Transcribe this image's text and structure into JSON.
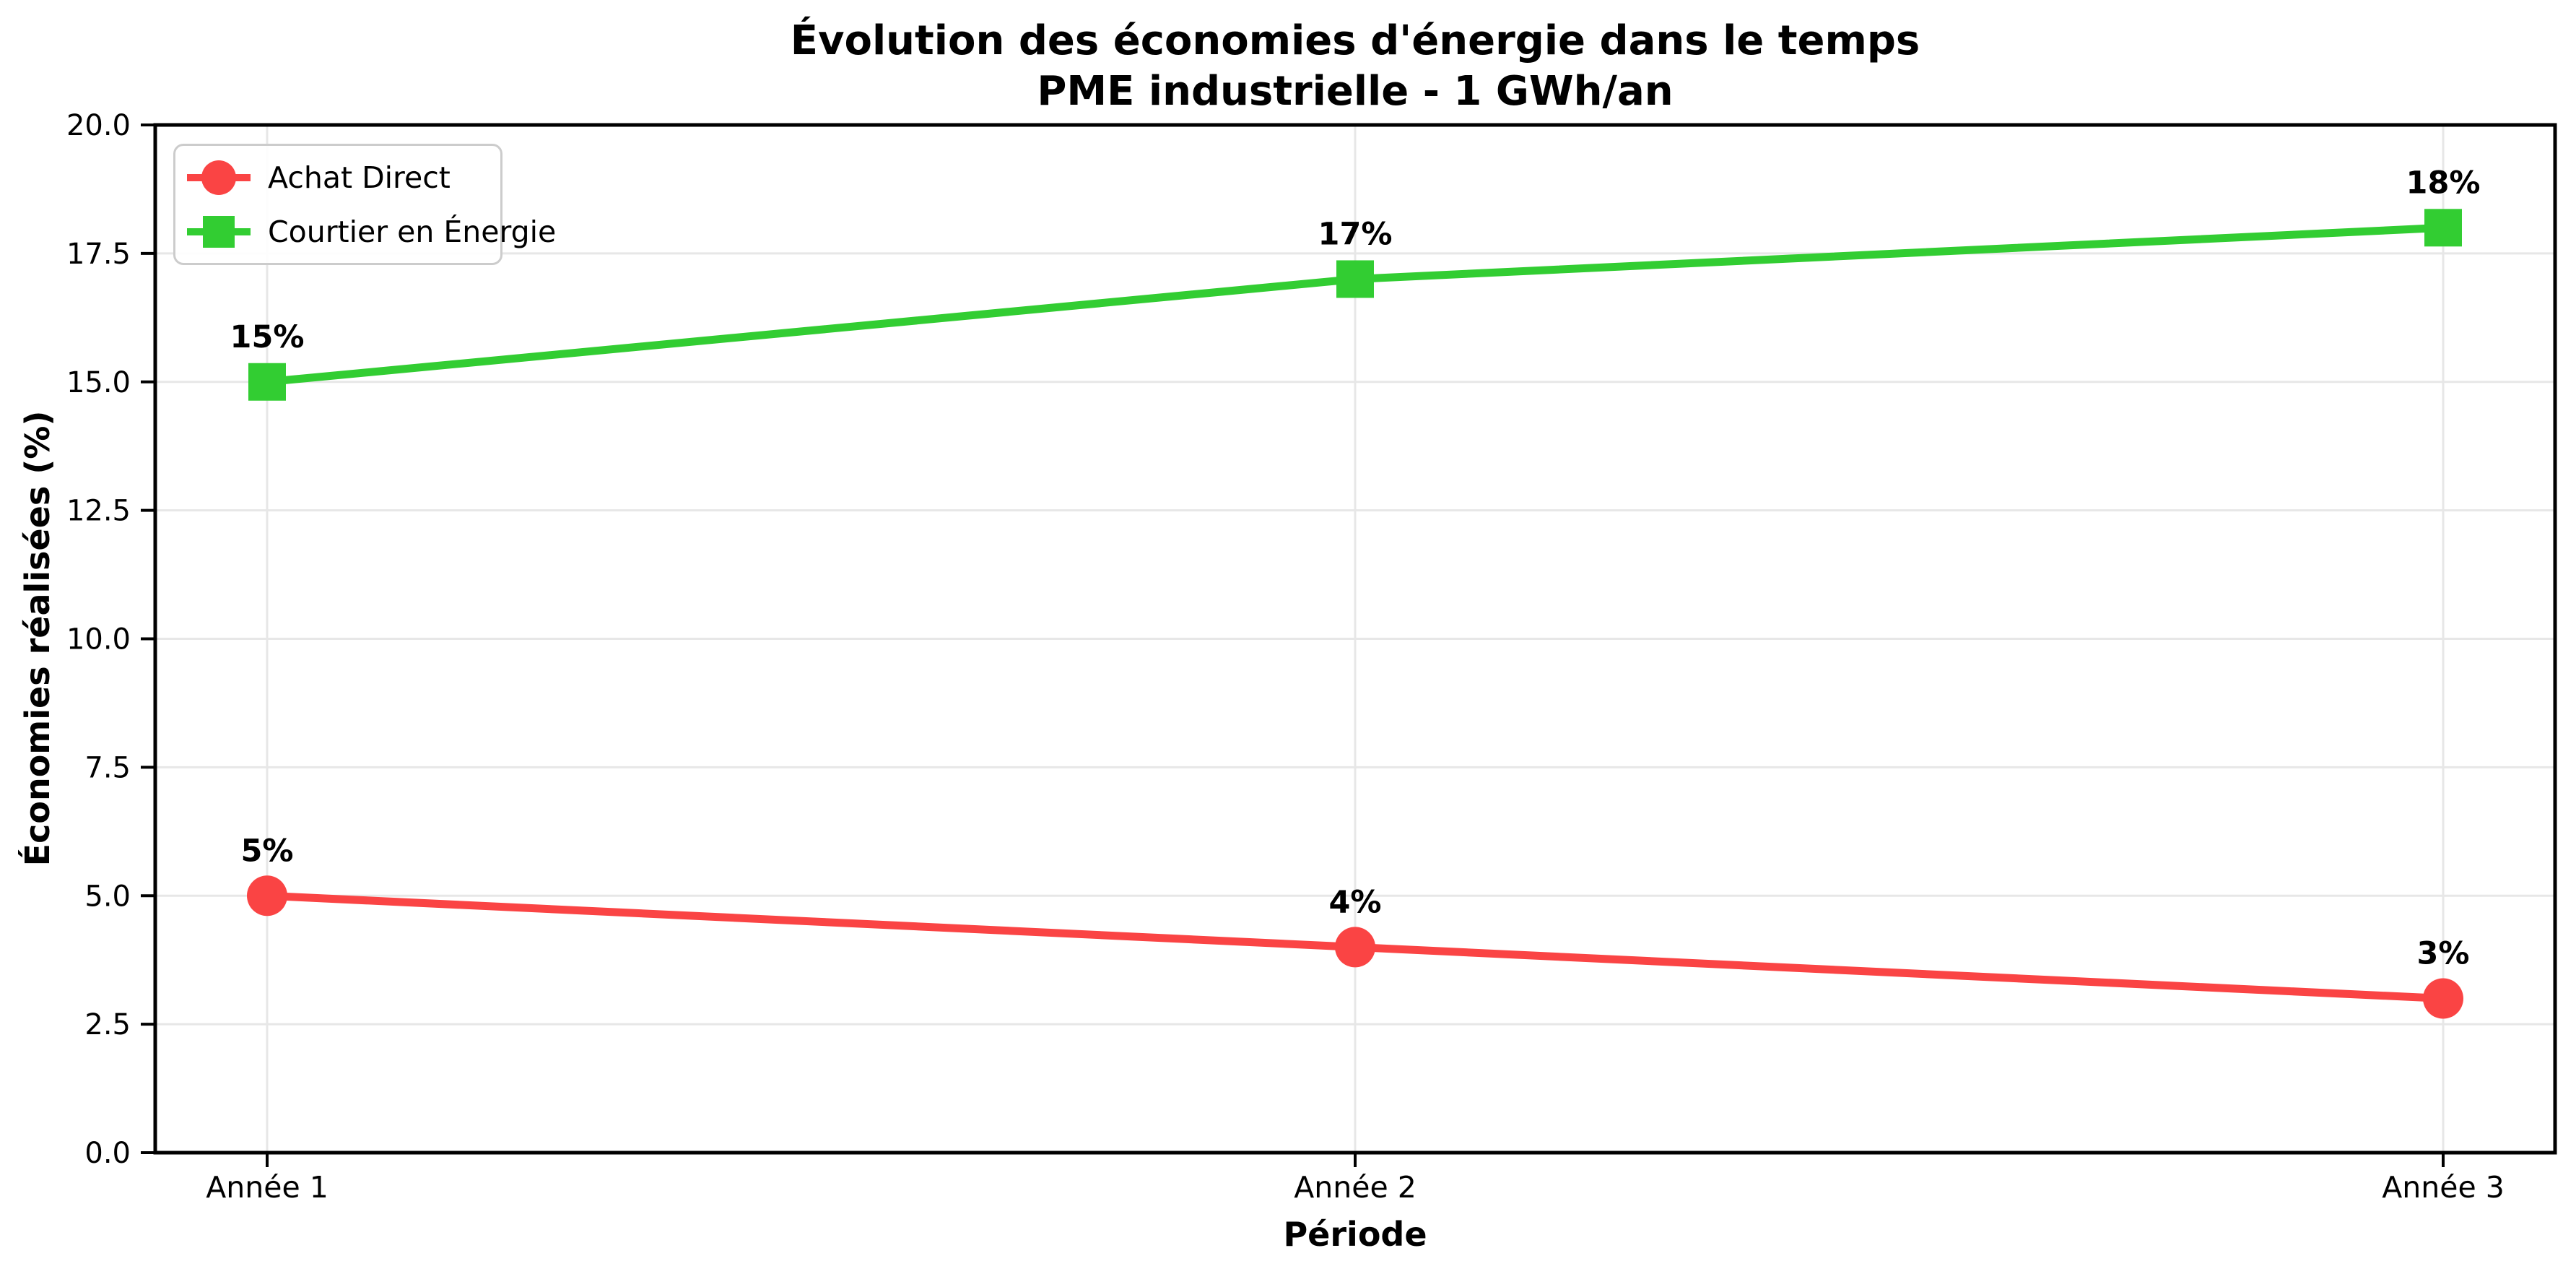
{
  "chart_data": {
    "type": "line",
    "title": "Évolution des économies d'énergie dans le temps",
    "subtitle": "PME industrielle - 1 GWh/an",
    "xlabel": "Période",
    "ylabel": "Économies réalisées (%)",
    "categories": [
      "Année 1",
      "Année 2",
      "Année 3"
    ],
    "y_ticks": [
      "0.0",
      "2.5",
      "5.0",
      "7.5",
      "10.0",
      "12.5",
      "15.0",
      "17.5",
      "20.0"
    ],
    "ylim": [
      0,
      20
    ],
    "grid": true,
    "legend_position": "upper-left",
    "colors": {
      "grid": "#e7e7e7",
      "spine": "#000000",
      "text": "#000000",
      "legend_border": "#cccccc"
    },
    "series": [
      {
        "name": "Achat Direct",
        "values": [
          5,
          4,
          3
        ],
        "labels": [
          "5%",
          "4%",
          "3%"
        ],
        "color": "#fa4444",
        "marker": "circle"
      },
      {
        "name": "Courtier en Énergie",
        "values": [
          15,
          17,
          18
        ],
        "labels": [
          "15%",
          "17%",
          "18%"
        ],
        "color": "#32cd32",
        "marker": "square"
      }
    ]
  }
}
